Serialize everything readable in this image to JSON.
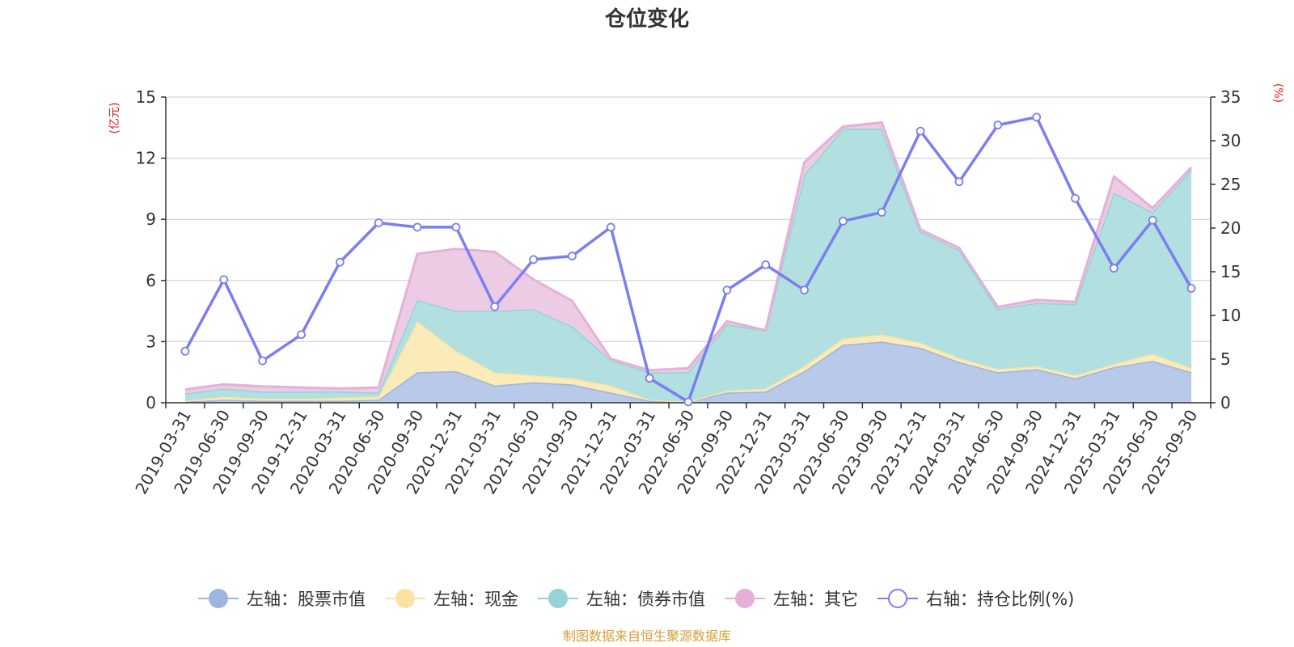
{
  "chart_data": {
    "type": "area",
    "title": "仓位变化",
    "left_unit": "(亿元)",
    "right_unit": "(%)",
    "categories": [
      "2019-03-31",
      "2019-06-30",
      "2019-09-30",
      "2019-12-31",
      "2020-03-31",
      "2020-06-30",
      "2020-09-30",
      "2020-12-31",
      "2021-03-31",
      "2021-06-30",
      "2021-09-30",
      "2021-12-31",
      "2022-03-31",
      "2022-06-30",
      "2022-09-30",
      "2022-12-31",
      "2023-03-31",
      "2023-06-30",
      "2023-09-30",
      "2023-12-31",
      "2024-03-31",
      "2024-06-30",
      "2024-09-30",
      "2024-12-31",
      "2025-03-31",
      "2025-06-30",
      "2025-09-30"
    ],
    "left_axis": {
      "min": 0,
      "max": 15,
      "ticks": [
        0,
        3,
        6,
        9,
        12,
        15
      ],
      "tick_labels": [
        "0",
        "3",
        "6",
        "9",
        "12",
        "15"
      ]
    },
    "right_axis": {
      "min": 0,
      "max": 35,
      "ticks": [
        0,
        5,
        10,
        15,
        20,
        25,
        30,
        35
      ],
      "tick_labels": [
        "0",
        "5",
        "10",
        "15",
        "20",
        "25",
        "30",
        "35"
      ]
    },
    "stacked_series": [
      {
        "name": "左轴：股票市值",
        "color": "#9db5e0",
        "fill": "#b8c9ea",
        "values": [
          0.05,
          0.15,
          0.1,
          0.1,
          0.1,
          0.15,
          1.5,
          1.55,
          0.85,
          1.0,
          0.9,
          0.5,
          0.1,
          0.05,
          0.5,
          0.55,
          1.55,
          2.85,
          3.0,
          2.7,
          2.0,
          1.5,
          1.65,
          1.2,
          1.75,
          2.05,
          1.5
        ]
      },
      {
        "name": "左轴：现金",
        "color": "#f8e3a2",
        "fill": "#faebb8",
        "values": [
          0.05,
          0.15,
          0.1,
          0.1,
          0.15,
          0.15,
          2.5,
          1.0,
          0.65,
          0.35,
          0.3,
          0.35,
          0.05,
          0.0,
          0.1,
          0.15,
          0.25,
          0.3,
          0.35,
          0.25,
          0.2,
          0.15,
          0.15,
          0.15,
          0.15,
          0.35,
          0.2
        ]
      },
      {
        "name": "左轴：债券市值",
        "color": "#95d3d6",
        "fill": "#b2dfe0",
        "values": [
          0.35,
          0.4,
          0.35,
          0.35,
          0.3,
          0.2,
          1.05,
          1.95,
          3.0,
          3.25,
          2.55,
          1.25,
          1.35,
          1.45,
          3.25,
          2.85,
          9.4,
          10.3,
          10.1,
          5.45,
          5.3,
          2.95,
          3.1,
          3.5,
          8.4,
          6.95,
          9.75
        ]
      },
      {
        "name": "左轴：其它",
        "color": "#e5b0d8",
        "fill": "#ecccE4",
        "values": [
          0.2,
          0.2,
          0.25,
          0.2,
          0.15,
          0.25,
          2.25,
          3.05,
          2.9,
          1.45,
          1.25,
          0.05,
          0.1,
          0.2,
          0.15,
          0.0,
          0.6,
          0.1,
          0.3,
          0.1,
          0.1,
          0.1,
          0.15,
          0.1,
          0.8,
          0.2,
          0.1
        ]
      }
    ],
    "line_series": {
      "name": "右轴：持仓比例(%)",
      "color": "#7b7ef0",
      "values": [
        5.9,
        14.1,
        4.8,
        7.8,
        16.1,
        20.6,
        20.1,
        20.1,
        11.0,
        16.4,
        16.8,
        20.1,
        2.8,
        0.1,
        12.9,
        15.8,
        12.9,
        20.8,
        21.8,
        31.1,
        25.3,
        31.8,
        32.7,
        23.4,
        15.4,
        20.9,
        13.1
      ]
    },
    "legend_position": "bottom",
    "grid": true
  },
  "legend": [
    {
      "label": "左轴：股票市值",
      "color": "#9db5e0",
      "style": "filled"
    },
    {
      "label": "左轴：现金",
      "color": "#f8e3a2",
      "style": "filled"
    },
    {
      "label": "左轴：债券市值",
      "color": "#95d3d6",
      "style": "filled"
    },
    {
      "label": "左轴：其它",
      "color": "#e5b0d8",
      "style": "filled"
    },
    {
      "label": "右轴：持仓比例(%)",
      "color": "#7b7ef0",
      "style": "hollow"
    }
  ],
  "source_text": "制图数据来自恒生聚源数据库",
  "colors": {
    "axis": "#333333",
    "grid": "#cccccc",
    "unit_red": "#e02020",
    "source": "#d4a03a"
  }
}
